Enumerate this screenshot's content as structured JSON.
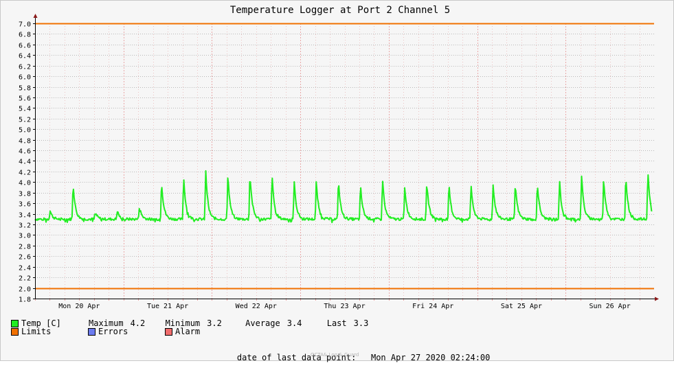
{
  "chart_data": {
    "type": "line",
    "title": "Temperature Logger at Port 2 Channel 5",
    "xlabel": "",
    "ylabel": "",
    "ylim": [
      1.8,
      7.0
    ],
    "yticks": [
      "1.8",
      "2.0",
      "2.2",
      "2.4",
      "2.6",
      "2.8",
      "3.0",
      "3.2",
      "3.4",
      "3.6",
      "3.8",
      "4.0",
      "4.2",
      "4.4",
      "4.6",
      "4.8",
      "5.0",
      "5.2",
      "5.4",
      "5.6",
      "5.8",
      "6.0",
      "6.2",
      "6.4",
      "6.6",
      "6.8",
      "7.0"
    ],
    "xdomain": [
      0,
      7
    ],
    "xticks": [
      {
        "x": 0.5,
        "label": "Mon 20 Apr"
      },
      {
        "x": 1.5,
        "label": "Tue 21 Apr"
      },
      {
        "x": 2.5,
        "label": "Wed 22 Apr"
      },
      {
        "x": 3.5,
        "label": "Thu 23 Apr"
      },
      {
        "x": 4.5,
        "label": "Fri 24 Apr"
      },
      {
        "x": 5.5,
        "label": "Sat 25 Apr"
      },
      {
        "x": 6.5,
        "label": "Sun 26 Apr"
      }
    ],
    "grid": true,
    "limits": {
      "upper": 7.0,
      "lower": 2.0
    },
    "baseline": 3.3,
    "spikes": [
      [
        0.17,
        3.47
      ],
      [
        0.43,
        3.99
      ],
      [
        0.68,
        3.44
      ],
      [
        0.93,
        3.46
      ],
      [
        1.18,
        3.55
      ],
      [
        1.43,
        4.04
      ],
      [
        1.68,
        4.12
      ],
      [
        1.93,
        4.23
      ],
      [
        2.18,
        4.17
      ],
      [
        2.43,
        4.22
      ],
      [
        2.68,
        4.15
      ],
      [
        2.93,
        4.03
      ],
      [
        3.18,
        4.03
      ],
      [
        3.43,
        4.06
      ],
      [
        3.68,
        3.95
      ],
      [
        3.93,
        4.08
      ],
      [
        4.18,
        3.94
      ],
      [
        4.43,
        4.02
      ],
      [
        4.68,
        3.97
      ],
      [
        4.93,
        3.97
      ],
      [
        5.18,
        3.97
      ],
      [
        5.43,
        3.99
      ],
      [
        5.68,
        4.0
      ],
      [
        5.93,
        4.05
      ],
      [
        6.18,
        4.14
      ],
      [
        6.43,
        4.09
      ],
      [
        6.68,
        4.14
      ],
      [
        6.93,
        4.25
      ]
    ],
    "series": [
      {
        "name": "Temp [C]",
        "color": "#22ee22"
      }
    ]
  },
  "legend": {
    "temp": {
      "label": "Temp [C]",
      "color": "#22ee22"
    },
    "limits": {
      "label": "Limits",
      "color": "#f07000"
    },
    "errors": {
      "label": "Errors",
      "color": "#6c7cf0"
    },
    "alarm": {
      "label": "Alarm",
      "color": "#f06c6c"
    },
    "maximum_label": "Maximum",
    "maximum_value": "4.2",
    "minimum_label": "Minimum",
    "minimum_value": "3.2",
    "average_label": "Average",
    "average_value": "3.4",
    "last_label": "Last",
    "last_value": "3.3"
  },
  "footer": {
    "date_label": "date of last data point:",
    "date_value": "Mon Apr 27 2020 02:24:00",
    "credit": "OCTA& Log & Guard"
  },
  "colors": {
    "line": "#22ee22",
    "limit": "#f07000",
    "hgrid": "#b8b8b8",
    "vgrid": "#e8a0a0",
    "axis": "#000000",
    "arrow": "#8b1a1a"
  }
}
